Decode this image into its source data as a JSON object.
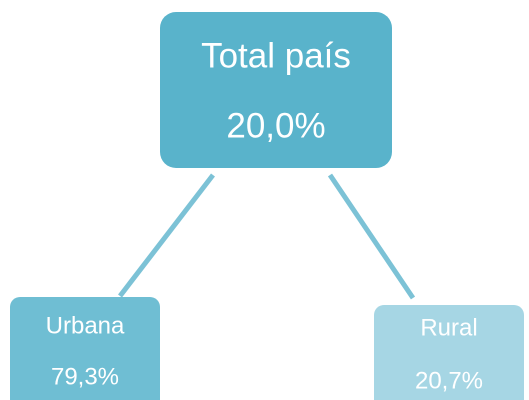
{
  "nodes": [
    {
      "label": "Total país",
      "value": "20,0%"
    },
    {
      "label": "Urbana",
      "value": "79,3%"
    },
    {
      "label": "Rural",
      "value": "20,7%"
    }
  ]
}
